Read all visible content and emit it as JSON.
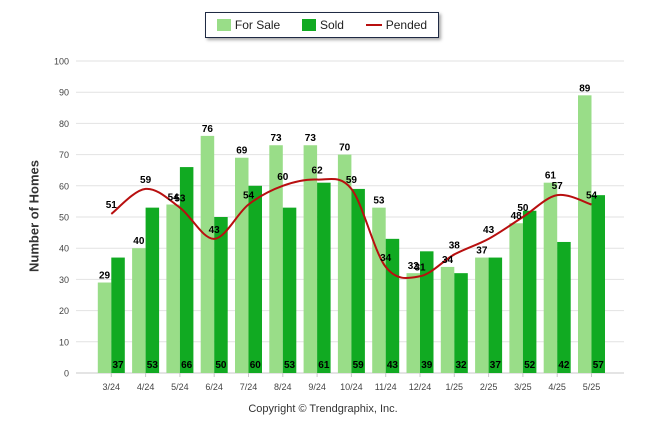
{
  "legend": {
    "for_sale": "For Sale",
    "sold": "Sold",
    "pended": "Pended"
  },
  "y_axis_label": "Number of Homes",
  "copyright": "Copyright © Trendgraphix, Inc.",
  "colors": {
    "for_sale": "#99dd88",
    "sold": "#11aa22",
    "pended": "#b80f0f",
    "grid": "#e2e2e2"
  },
  "chart_data": {
    "type": "bar",
    "categories": [
      "3/24",
      "4/24",
      "5/24",
      "6/24",
      "7/24",
      "8/24",
      "9/24",
      "10/24",
      "11/24",
      "12/24",
      "1/25",
      "2/25",
      "3/25",
      "4/25",
      "5/25"
    ],
    "ylim": [
      0,
      100
    ],
    "yticks": [
      0,
      10,
      20,
      30,
      40,
      50,
      60,
      70,
      80,
      90,
      100
    ],
    "ylabel": "Number of Homes",
    "grid": true,
    "legend_position": "top-center",
    "series": [
      {
        "name": "For Sale",
        "type": "bar",
        "values": [
          29,
          40,
          54,
          76,
          69,
          73,
          73,
          70,
          53,
          32,
          34,
          37,
          48,
          61,
          89
        ]
      },
      {
        "name": "Sold",
        "type": "bar",
        "values": [
          37,
          53,
          66,
          50,
          60,
          53,
          61,
          59,
          43,
          39,
          32,
          37,
          52,
          42,
          57
        ]
      },
      {
        "name": "Pended",
        "type": "line",
        "values": [
          51,
          59,
          53,
          43,
          54,
          60,
          62,
          59,
          34,
          31,
          38,
          43,
          50,
          57,
          54
        ]
      }
    ]
  }
}
